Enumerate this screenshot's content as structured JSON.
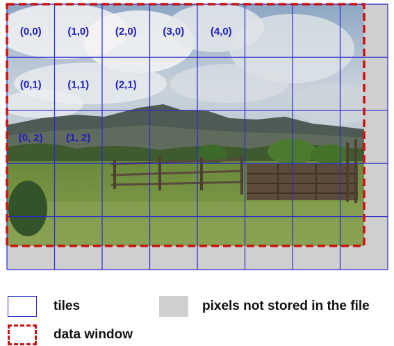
{
  "diagram": {
    "tile_grid": {
      "columns": 8,
      "rows": 5
    },
    "tile_labels": [
      {
        "text": "(0,0)",
        "col": 0,
        "row": 0
      },
      {
        "text": "(1,0)",
        "col": 1,
        "row": 0
      },
      {
        "text": "(2,0)",
        "col": 2,
        "row": 0
      },
      {
        "text": "(3,0)",
        "col": 3,
        "row": 0
      },
      {
        "text": "(4,0)",
        "col": 4,
        "row": 0
      },
      {
        "text": "(0,1)",
        "col": 0,
        "row": 1
      },
      {
        "text": "(1,1)",
        "col": 1,
        "row": 1
      },
      {
        "text": "(2,1)",
        "col": 2,
        "row": 1
      },
      {
        "text": "(0, 2)",
        "col": 0,
        "row": 2
      },
      {
        "text": "(1, 2)",
        "col": 1,
        "row": 2
      }
    ]
  },
  "legend": {
    "tiles": "tiles",
    "data_window": "data window",
    "not_stored": "pixels not stored in the file"
  },
  "colors": {
    "tile_line": "#2a2ad0",
    "tile_label": "#1d1dc0",
    "data_window": "#cc1111",
    "not_stored": "#cfcfcf"
  }
}
